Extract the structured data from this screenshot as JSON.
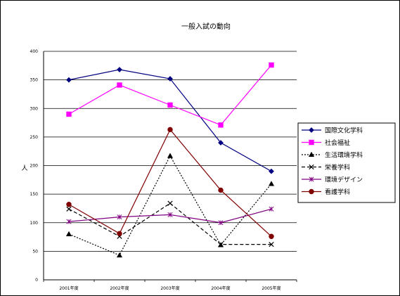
{
  "chart_data": {
    "type": "line",
    "title": "一般入試の動向",
    "xlabel": "",
    "ylabel": "人",
    "ylim": [
      0,
      400
    ],
    "yticks": [
      0,
      50,
      100,
      150,
      200,
      250,
      300,
      350,
      400
    ],
    "grid": true,
    "legend": "right",
    "categories": [
      "2001年度",
      "2002年度",
      "2003年度",
      "2004年度",
      "2005年度"
    ],
    "series": [
      {
        "name": "国際文化学科",
        "values": [
          350,
          368,
          352,
          240,
          190
        ],
        "color": "#000080",
        "marker": "diamond",
        "dash": "solid"
      },
      {
        "name": "社会福祉",
        "values": [
          290,
          341,
          306,
          271,
          376
        ],
        "color": "#ff00ff",
        "marker": "square",
        "dash": "solid"
      },
      {
        "name": "生活環境学科",
        "values": [
          80,
          43,
          217,
          61,
          168
        ],
        "color": "#000000",
        "marker": "triangle",
        "dash": "dotted"
      },
      {
        "name": "栄養学科",
        "values": [
          124,
          76,
          134,
          62,
          62
        ],
        "color": "#000000",
        "marker": "x",
        "dash": "dashed"
      },
      {
        "name": "環境デザイン",
        "values": [
          102,
          110,
          114,
          100,
          124
        ],
        "color": "#800080",
        "marker": "star",
        "dash": "solid"
      },
      {
        "name": "看護学科",
        "values": [
          132,
          81,
          263,
          157,
          76
        ],
        "color": "#800000",
        "marker": "circle",
        "dash": "solid"
      }
    ]
  }
}
